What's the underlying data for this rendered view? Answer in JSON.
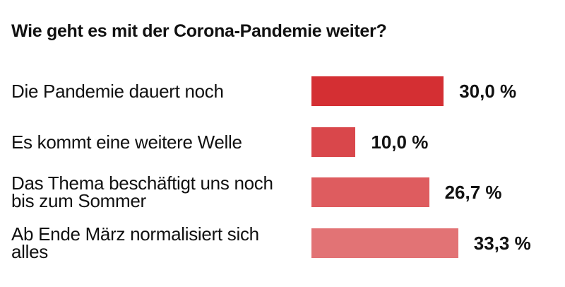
{
  "chart_data": {
    "type": "bar",
    "orientation": "horizontal",
    "title": "Wie geht es mit der Corona-Pandemie weiter?",
    "categories": [
      "Die Pandemie dauert noch",
      "Es kommt eine weitere Welle",
      "Das Thema beschäftigt uns noch bis zum Sommer",
      "Ab Ende März normalisiert sich alles"
    ],
    "values": [
      30.0,
      10.0,
      26.7,
      33.3
    ],
    "value_labels": [
      "30,0 %",
      "10,0 %",
      "26,7 %",
      "33,3 %"
    ],
    "colors": [
      "#d42f33",
      "#d9474b",
      "#de5c5f",
      "#e27375"
    ]
  }
}
